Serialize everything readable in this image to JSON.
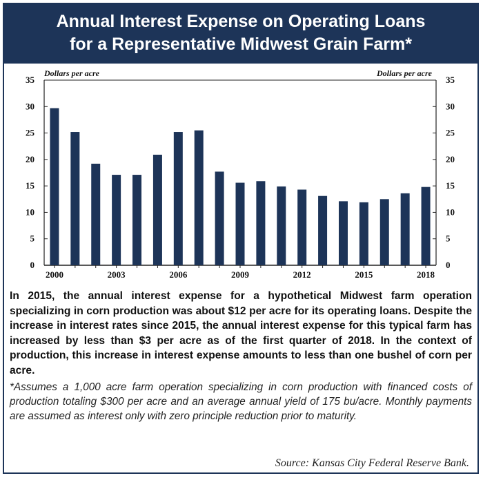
{
  "header": {
    "title_line1": "Annual Interest Expense on Operating Loans",
    "title_line2": "for a Representative Midwest Grain Farm*"
  },
  "chart_data": {
    "type": "bar",
    "categories": [
      "2000",
      "2001",
      "2002",
      "2003",
      "2004",
      "2005",
      "2006",
      "2007",
      "2008",
      "2009",
      "2010",
      "2011",
      "2012",
      "2013",
      "2014",
      "2015",
      "2016",
      "2017",
      "2018"
    ],
    "x_tick_labels": [
      "2000",
      "2003",
      "2006",
      "2009",
      "2012",
      "2015",
      "2018"
    ],
    "values": [
      29.7,
      25.2,
      19.2,
      17.1,
      17.1,
      20.9,
      25.2,
      25.5,
      17.7,
      15.6,
      15.9,
      14.9,
      14.3,
      13.1,
      12.1,
      11.9,
      12.5,
      13.6,
      14.8
    ],
    "ylabel_left": "Dollars per acre",
    "ylabel_right": "Dollars per acre",
    "ylim": [
      0,
      35
    ],
    "y_ticks": [
      0,
      5,
      10,
      15,
      20,
      25,
      30,
      35
    ],
    "bar_color": "#1d3458",
    "grid": false
  },
  "description": "In 2015, the annual interest expense for a hypothetical Midwest farm operation specializing in corn production was about $12 per acre for its operating loans. Despite the increase in interest rates since 2015, the annual interest expense for this typical farm has increased by less than $3 per acre as of the first quarter of 2018. In the context of production, this increase in interest expense amounts to less than one bushel of corn per acre.",
  "footnote": "*Assumes a 1,000 acre farm operation specializing in corn production with financed costs of production totaling $300 per acre and an average annual yield of 175 bu/acre. Monthly payments are assumed as interest only with zero principle reduction prior to maturity.",
  "source": "Source: Kansas City Federal Reserve Bank.",
  "colors": {
    "header_bg": "#1d3458",
    "header_text": "#ffffff"
  }
}
